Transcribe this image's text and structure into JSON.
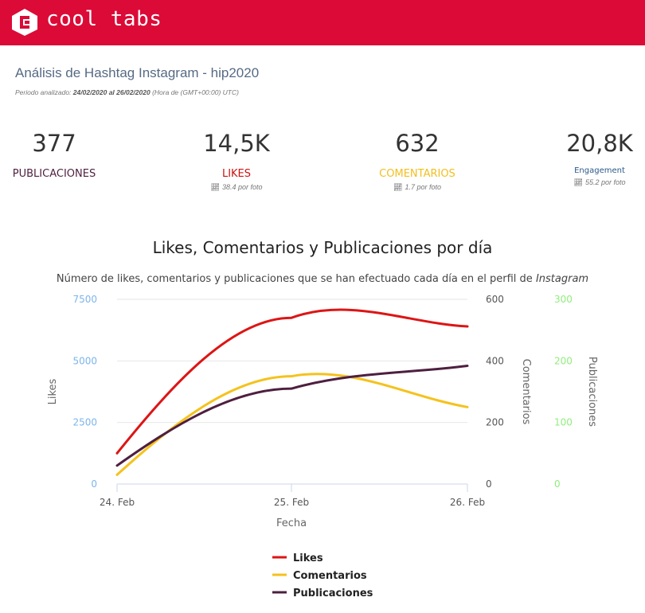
{
  "header": {
    "brand": "cool tabs",
    "brand_color": "#dc0a37"
  },
  "report": {
    "title": "Análisis de Hashtag Instagram - hip2020",
    "period_prefix": "Periodo analizado:",
    "period_range": "24/02/2020 al 26/02/2020",
    "period_tz": "(Hora de (GMT+00:00) UTC)"
  },
  "kpis": [
    {
      "value": "377",
      "label": "PUBLICACIONES",
      "color": "#4e1f3f",
      "sub": ""
    },
    {
      "value": "14,5K",
      "label": "LIKES",
      "color": "#cc1111",
      "sub": "38.4 por foto"
    },
    {
      "value": "632",
      "label": "COMENTARIOS",
      "color": "#f2be1d",
      "sub": "1.7 por foto"
    },
    {
      "value": "20,8K",
      "label": "Engagement",
      "color": "#2b5a8a",
      "sub": "55.2 por foto"
    }
  ],
  "chart_data": {
    "type": "line",
    "title": "Likes, Comentarios y Publicaciones por día",
    "subtitle": "Número de likes, comentarios y publicaciones que se han efectuado cada día en el perfil de",
    "subtitle_em": "Instagram",
    "xlabel": "Fecha",
    "categories": [
      "24. Feb",
      "25. Feb",
      "26. Feb"
    ],
    "axes": [
      {
        "id": "likes",
        "label": "Likes",
        "min": 0,
        "max": 7500,
        "ticks": [
          "0",
          "2500",
          "5000",
          "7500"
        ],
        "color": "#7cb5ec"
      },
      {
        "id": "comentarios",
        "label": "Comentarios",
        "min": 0,
        "max": 600,
        "ticks": [
          "0",
          "200",
          "400",
          "600"
        ],
        "color": "#555555"
      },
      {
        "id": "publicaciones",
        "label": "Publicaciones",
        "min": 0,
        "max": 300,
        "ticks": [
          "0",
          "100",
          "200",
          "300"
        ],
        "color": "#90ed7d"
      }
    ],
    "series": [
      {
        "name": "Likes",
        "axis": "likes",
        "color": "#dd1515",
        "values": [
          1250,
          6750,
          6400
        ]
      },
      {
        "name": "Comentarios",
        "axis": "comentarios",
        "color": "#f5c21c",
        "values": [
          30,
          350,
          250
        ]
      },
      {
        "name": "Publicaciones",
        "axis": "publicaciones",
        "color": "#4e1f3f",
        "values": [
          30,
          155,
          192
        ]
      }
    ],
    "grid": true,
    "legend": "bottom"
  }
}
